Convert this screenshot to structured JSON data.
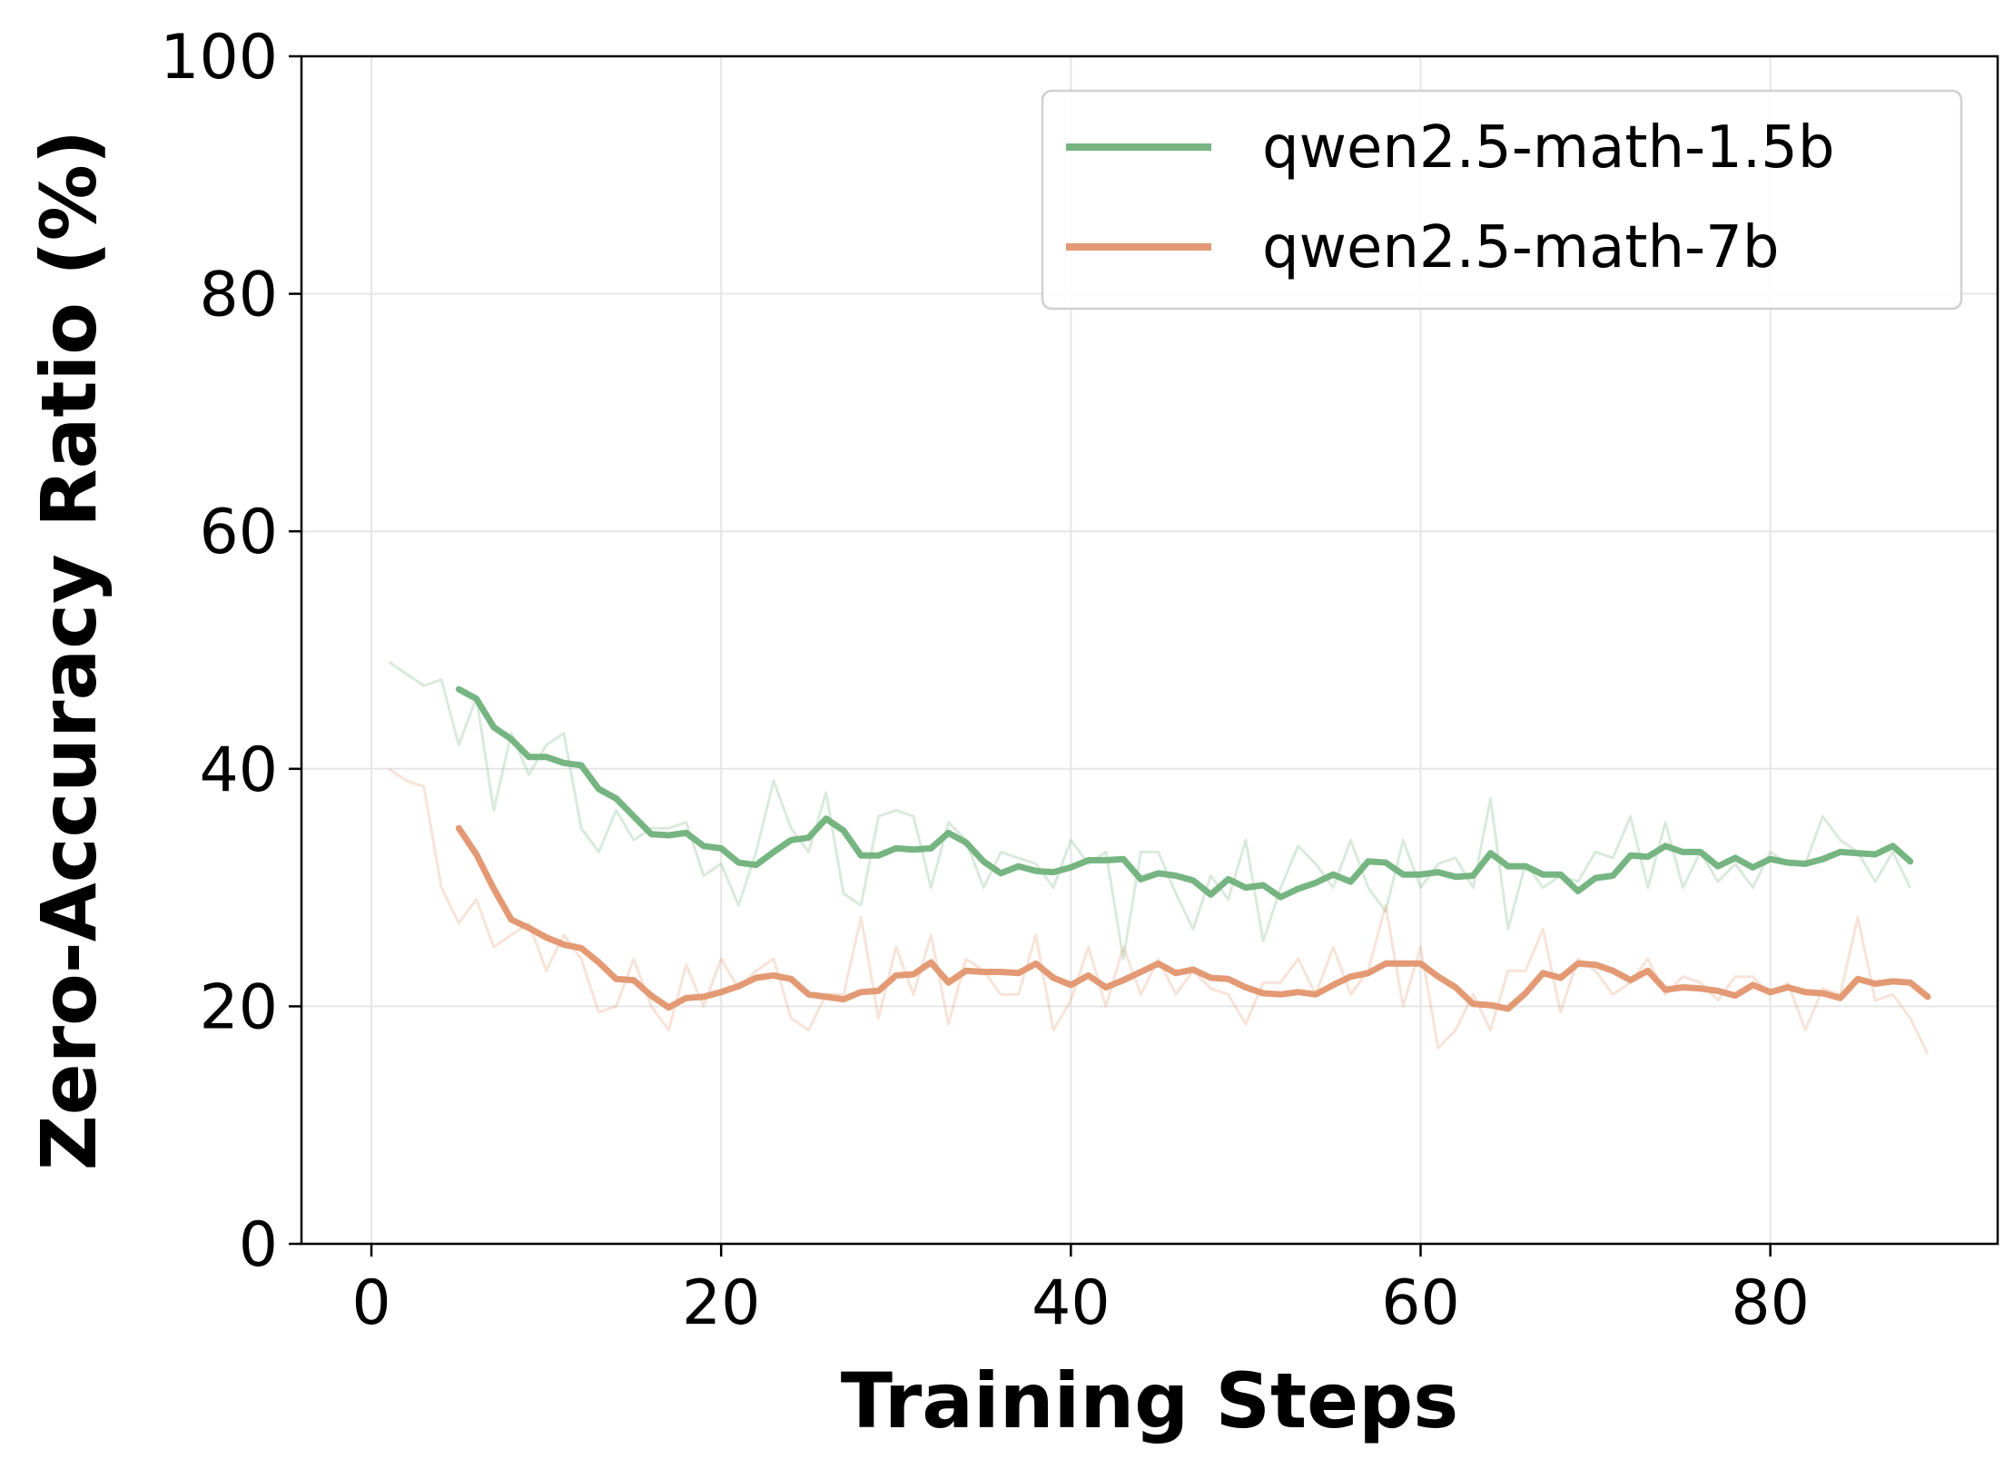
{
  "chart_data": {
    "type": "line",
    "xlabel": "Training Steps",
    "ylabel": "Zero-Accuracy Ratio (%)",
    "xlim": [
      -4,
      93
    ],
    "ylim": [
      0,
      100
    ],
    "xticks": [
      0,
      20,
      40,
      60,
      80
    ],
    "yticks": [
      0,
      20,
      40,
      60,
      80,
      100
    ],
    "grid": true,
    "legend_position": "top-right",
    "series": [
      {
        "name": "qwen2.5-math-1.5b",
        "color": "#76b581",
        "raw_x": [
          1,
          2,
          3,
          4,
          5,
          6,
          7,
          8,
          9,
          10,
          11,
          12,
          13,
          14,
          15,
          16,
          17,
          18,
          19,
          20,
          21,
          22,
          23,
          24,
          25,
          26,
          27,
          28,
          29,
          30,
          31,
          32,
          33,
          34,
          35,
          36,
          37,
          38,
          39,
          40,
          41,
          42,
          43,
          44,
          45,
          46,
          47,
          48,
          49,
          50,
          51,
          52,
          53,
          54,
          55,
          56,
          57,
          58,
          59,
          60,
          61,
          62,
          63,
          64,
          65,
          66,
          67,
          68,
          69,
          70,
          71,
          72,
          73,
          74,
          75,
          76,
          77,
          78,
          79,
          80,
          81,
          82,
          83,
          84,
          85,
          86,
          87,
          88
        ],
        "raw_y": [
          49,
          48,
          47,
          47.5,
          42,
          46,
          36.5,
          43,
          39.5,
          42,
          43,
          35,
          33,
          36.5,
          34,
          35,
          35,
          35.5,
          31,
          32,
          28.5,
          33,
          39,
          35,
          33,
          38,
          29.5,
          28.5,
          36,
          36.5,
          36,
          30,
          35.5,
          34,
          30,
          33,
          32.5,
          32,
          30,
          34,
          32,
          33,
          24,
          33,
          33,
          29.5,
          26.5,
          31,
          29,
          34,
          25.5,
          30,
          33.5,
          32,
          30,
          34,
          30,
          28,
          34,
          30,
          32,
          32.5,
          30,
          37.5,
          26.5,
          32,
          30,
          31,
          30.5,
          33,
          32.5,
          36,
          30,
          35.5,
          30,
          33,
          30.5,
          32,
          30,
          33,
          32,
          32,
          36,
          34,
          33,
          30.5,
          33,
          30
        ],
        "smooth_x": [
          5,
          6,
          7,
          8,
          9,
          10,
          11,
          12,
          13,
          14,
          15,
          16,
          17,
          18,
          19,
          20,
          21,
          22,
          23,
          24,
          25,
          26,
          27,
          28,
          29,
          30,
          31,
          32,
          33,
          34,
          35,
          36,
          37,
          38,
          39,
          40,
          41,
          42,
          43,
          44,
          45,
          46,
          47,
          48,
          49,
          50,
          51,
          52,
          53,
          54,
          55,
          56,
          57,
          58,
          59,
          60,
          61,
          62,
          63,
          64,
          65,
          66,
          67,
          68,
          69,
          70,
          71,
          72,
          73,
          74,
          75,
          76,
          77,
          78,
          79,
          80,
          81,
          82,
          83,
          84,
          85,
          86,
          87,
          88
        ],
        "smooth_y": [
          46.7,
          45.9,
          43.5,
          42.5,
          41,
          41,
          40.5,
          40.3,
          38.3,
          37.5,
          36,
          34.5,
          34.4,
          34.6,
          33.5,
          33.3,
          32.1,
          31.9,
          33,
          34,
          34.2,
          35.8,
          34.8,
          32.7,
          32.7,
          33.3,
          33.2,
          33.3,
          34.6,
          33.8,
          32.2,
          31.2,
          31.8,
          31.4,
          31.3,
          31.7,
          32.3,
          32.3,
          32.4,
          30.7,
          31.2,
          31,
          30.6,
          29.4,
          30.7,
          30,
          30.2,
          29.2,
          29.9,
          30.4,
          31.1,
          30.5,
          32.2,
          32.1,
          31.1,
          31.1,
          31.3,
          30.9,
          31,
          32.9,
          31.8,
          31.8,
          31.1,
          31.1,
          29.7,
          30.8,
          31,
          32.7,
          32.6,
          33.5,
          33,
          33,
          31.8,
          32.5,
          31.7,
          32.4,
          32.1,
          32,
          32.4,
          33,
          32.9,
          32.8,
          33.5,
          32.2
        ]
      },
      {
        "name": "qwen2.5-math-7b",
        "color": "#e39a74",
        "raw_x": [
          1,
          2,
          3,
          4,
          5,
          6,
          7,
          8,
          9,
          10,
          11,
          12,
          13,
          14,
          15,
          16,
          17,
          18,
          19,
          20,
          21,
          22,
          23,
          24,
          25,
          26,
          27,
          28,
          29,
          30,
          31,
          32,
          33,
          34,
          35,
          36,
          37,
          38,
          39,
          40,
          41,
          42,
          43,
          44,
          45,
          46,
          47,
          48,
          49,
          50,
          51,
          52,
          53,
          54,
          55,
          56,
          57,
          58,
          59,
          60,
          61,
          62,
          63,
          64,
          65,
          66,
          67,
          68,
          69,
          70,
          71,
          72,
          73,
          74,
          75,
          76,
          77,
          78,
          79,
          80,
          81,
          82,
          83,
          84,
          85,
          86,
          87,
          88,
          89
        ],
        "raw_y": [
          40,
          39,
          38.5,
          30,
          27,
          29,
          25,
          26,
          27,
          23,
          26,
          24,
          19.5,
          20,
          24,
          20,
          18,
          23.5,
          20,
          24,
          21.5,
          23,
          24,
          19,
          18,
          21,
          21,
          27.5,
          19,
          25,
          21,
          26,
          18.5,
          24,
          23,
          21,
          21,
          26,
          18,
          20.5,
          25,
          20,
          25,
          21,
          24,
          21,
          23,
          21.5,
          21,
          18.5,
          22,
          22,
          24,
          21,
          25,
          21,
          23,
          28.5,
          20,
          25,
          16.5,
          18,
          21,
          18,
          23,
          23,
          26.5,
          19.5,
          24,
          23,
          21,
          22,
          24,
          21,
          22.5,
          22,
          20.5,
          22.5,
          22.5,
          21,
          22,
          18,
          21.5,
          21,
          27.5,
          20.5,
          21,
          19,
          16
        ],
        "smooth_x": [
          5,
          6,
          7,
          8,
          9,
          10,
          11,
          12,
          13,
          14,
          15,
          16,
          17,
          18,
          19,
          20,
          21,
          22,
          23,
          24,
          25,
          26,
          27,
          28,
          29,
          30,
          31,
          32,
          33,
          34,
          35,
          36,
          37,
          38,
          39,
          40,
          41,
          42,
          43,
          44,
          45,
          46,
          47,
          48,
          49,
          50,
          51,
          52,
          53,
          54,
          55,
          56,
          57,
          58,
          59,
          60,
          61,
          62,
          63,
          64,
          65,
          66,
          67,
          68,
          69,
          70,
          71,
          72,
          73,
          74,
          75,
          76,
          77,
          78,
          79,
          80,
          81,
          82,
          83,
          84,
          85,
          86,
          87,
          88,
          89
        ],
        "smooth_y": [
          35,
          32.8,
          29.9,
          27.3,
          26.6,
          25.8,
          25.2,
          24.9,
          23.7,
          22.3,
          22.2,
          20.9,
          19.9,
          20.7,
          20.8,
          21.2,
          21.7,
          22.4,
          22.6,
          22.3,
          21,
          20.8,
          20.6,
          21.2,
          21.3,
          22.6,
          22.7,
          23.7,
          22,
          23,
          22.9,
          22.9,
          22.8,
          23.6,
          22.4,
          21.8,
          22.6,
          21.6,
          22.2,
          22.9,
          23.6,
          22.8,
          23.1,
          22.4,
          22.3,
          21.6,
          21.1,
          21,
          21.2,
          21,
          21.8,
          22.5,
          22.8,
          23.6,
          23.6,
          23.6,
          22.5,
          21.6,
          20.2,
          20.1,
          19.8,
          21.1,
          22.8,
          22.4,
          23.6,
          23.5,
          23,
          22.2,
          23,
          21.4,
          21.6,
          21.5,
          21.3,
          20.9,
          21.8,
          21.2,
          21.6,
          21.2,
          21.1,
          20.7,
          22.3,
          21.9,
          22.1,
          22,
          20.8
        ]
      }
    ]
  }
}
